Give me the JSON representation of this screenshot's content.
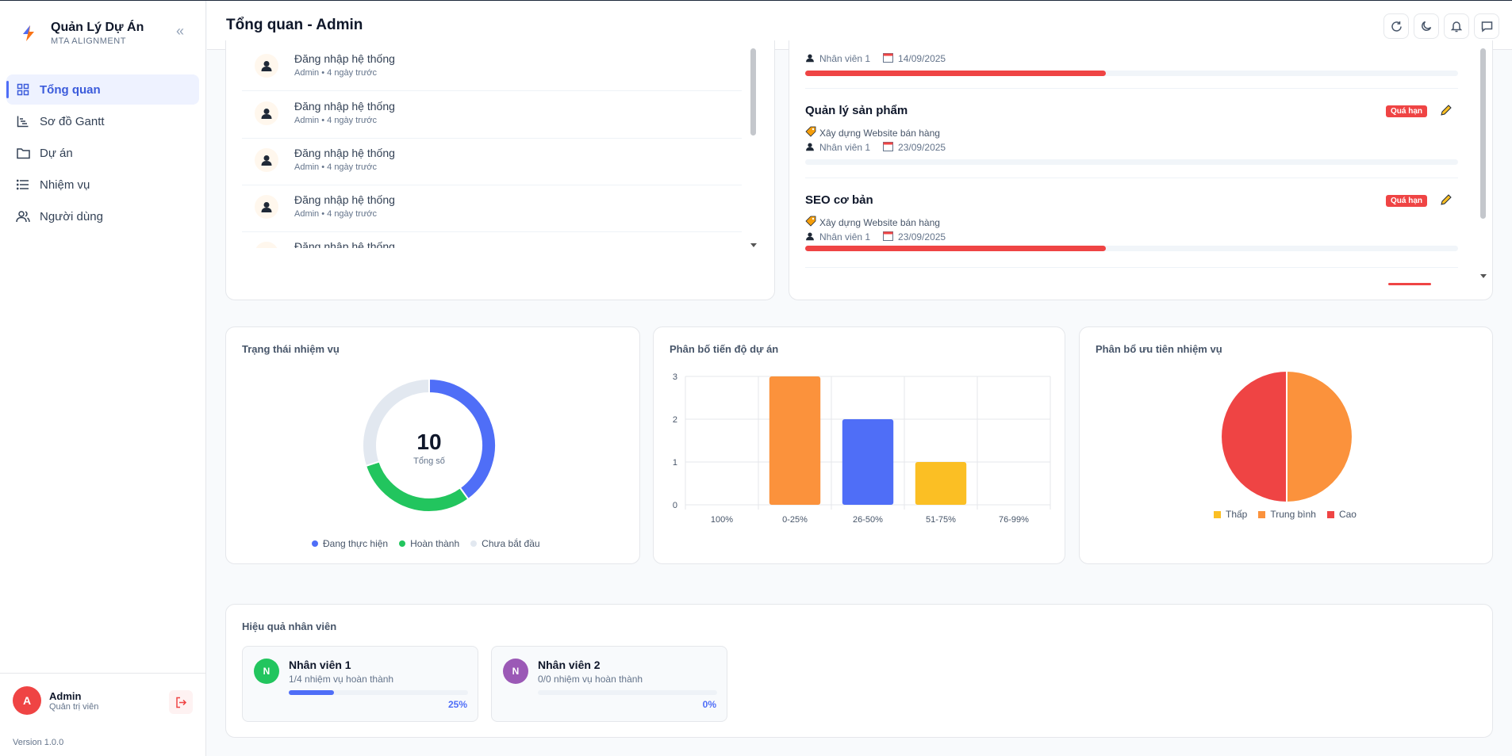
{
  "brand": {
    "title": "Quản Lý Dự Án",
    "subtitle": "MTA ALIGNMENT"
  },
  "nav": [
    {
      "label": "Tổng quan",
      "icon": "grid-icon",
      "active": true
    },
    {
      "label": "Sơ đồ Gantt",
      "icon": "gantt-chart-icon"
    },
    {
      "label": "Dự án",
      "icon": "folder-icon"
    },
    {
      "label": "Nhiệm vụ",
      "icon": "list-icon"
    },
    {
      "label": "Người dùng",
      "icon": "users-icon"
    }
  ],
  "user": {
    "initial": "A",
    "name": "Admin",
    "role": "Quản trị viên"
  },
  "version": "Version 1.0.0",
  "header": {
    "title": "Tổng quan - Admin"
  },
  "activities": [
    {
      "title": "Đăng nhập hệ thống",
      "meta": "Admin • 4 ngày trước"
    },
    {
      "title": "Đăng nhập hệ thống",
      "meta": "Admin • 4 ngày trước"
    },
    {
      "title": "Đăng nhập hệ thống",
      "meta": "Admin • 4 ngày trước"
    },
    {
      "title": "Đăng nhập hệ thống",
      "meta": "Admin • 4 ngày trước"
    },
    {
      "title": "Đăng nhập hệ thống",
      "meta": ""
    }
  ],
  "tasks_top": {
    "assignee": "Nhân viên 1",
    "date": "14/09/2025",
    "progress": 0.46
  },
  "tasks": [
    {
      "name": "Quản lý sản phẩm",
      "badge": "Quá hạn",
      "project": "Xây dựng Website bán hàng",
      "assignee": "Nhân viên 1",
      "date": "23/09/2025",
      "progress": 0
    },
    {
      "name": "SEO cơ bản",
      "badge": "Quá hạn",
      "project": "Xây dựng Website bán hàng",
      "assignee": "Nhân viên 1",
      "date": "23/09/2025",
      "progress": 0.46
    }
  ],
  "status_chart": {
    "title": "Trạng thái nhiệm vụ",
    "total": "10",
    "total_label": "Tổng số",
    "chart_data": {
      "type": "pie",
      "categories": [
        "Đang thực hiện",
        "Hoàn thành",
        "Chưa bắt đầu"
      ],
      "values": [
        4,
        3,
        3
      ],
      "colors": [
        "#4f6ef7",
        "#22c55e",
        "#e2e8f0"
      ]
    }
  },
  "progress_chart": {
    "title": "Phân bố tiến độ dự án",
    "chart_data": {
      "type": "bar",
      "categories": [
        "100%",
        "0-25%",
        "26-50%",
        "51-75%",
        "76-99%"
      ],
      "values": [
        0,
        3,
        2,
        1,
        0
      ],
      "colors": [
        "#94a3b8",
        "#fb923c",
        "#4f6ef7",
        "#fbbf24",
        "#94a3b8"
      ],
      "yticks": [
        "0",
        "1",
        "2",
        "3"
      ],
      "ylim": [
        0,
        3
      ]
    }
  },
  "priority_chart": {
    "title": "Phân bổ ưu tiên nhiệm vụ",
    "chart_data": {
      "type": "pie",
      "categories": [
        "Thấp",
        "Trung bình",
        "Cao"
      ],
      "values": [
        0,
        1,
        1
      ],
      "colors": [
        "#fbbf24",
        "#fb923c",
        "#ef4444"
      ]
    }
  },
  "performance": {
    "title": "Hiệu quả nhân viên",
    "employees": [
      {
        "initial": "N",
        "name": "Nhân viên 1",
        "sub": "1/4 nhiệm vụ hoàn thành",
        "pct": "25%",
        "progress": 0.25,
        "color": "#22c55e"
      },
      {
        "initial": "N",
        "name": "Nhân viên 2",
        "sub": "0/0 nhiệm vụ hoàn thành",
        "pct": "0%",
        "progress": 0,
        "color": "#9b59b6"
      }
    ]
  }
}
